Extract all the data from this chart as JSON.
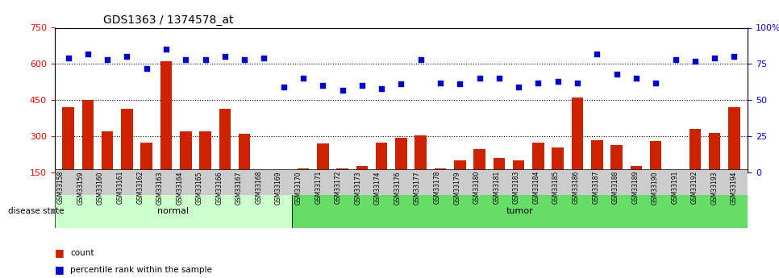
{
  "title": "GDS1363 / 1374578_at",
  "samples": [
    "GSM33158",
    "GSM33159",
    "GSM33160",
    "GSM33161",
    "GSM33162",
    "GSM33163",
    "GSM33164",
    "GSM33165",
    "GSM33166",
    "GSM33167",
    "GSM33168",
    "GSM33169",
    "GSM33170",
    "GSM33171",
    "GSM33172",
    "GSM33173",
    "GSM33174",
    "GSM33176",
    "GSM33177",
    "GSM33178",
    "GSM33179",
    "GSM33180",
    "GSM33181",
    "GSM33183",
    "GSM33184",
    "GSM33185",
    "GSM33186",
    "GSM33187",
    "GSM33188",
    "GSM33189",
    "GSM33190",
    "GSM33191",
    "GSM33192",
    "GSM33193",
    "GSM33194"
  ],
  "counts": [
    420,
    450,
    320,
    415,
    275,
    610,
    320,
    320,
    415,
    310,
    155,
    155,
    165,
    270,
    165,
    175,
    275,
    295,
    305,
    165,
    200,
    245,
    210,
    200,
    275,
    255,
    460,
    285,
    265,
    175,
    280,
    155,
    330,
    315,
    420
  ],
  "percentiles": [
    79,
    82,
    78,
    80,
    72,
    85,
    78,
    78,
    80,
    78,
    79,
    59,
    65,
    60,
    57,
    60,
    58,
    61,
    78,
    62,
    61,
    65,
    65,
    59,
    62,
    63,
    62,
    82,
    68,
    65,
    62,
    78,
    77,
    79,
    80
  ],
  "group_labels": [
    "normal",
    "tumor"
  ],
  "group_counts": [
    12,
    23
  ],
  "normal_color": "#ccffcc",
  "tumor_color": "#66dd66",
  "bar_color": "#cc2200",
  "dot_color": "#0000cc",
  "ylim_left": [
    150,
    750
  ],
  "ylim_right": [
    0,
    100
  ],
  "yticks_left": [
    150,
    300,
    450,
    600,
    750
  ],
  "yticks_right": [
    0,
    25,
    50,
    75,
    100
  ],
  "grid_values": [
    300,
    450,
    600
  ],
  "background_color": "#ffffff",
  "tick_area_color": "#cccccc"
}
